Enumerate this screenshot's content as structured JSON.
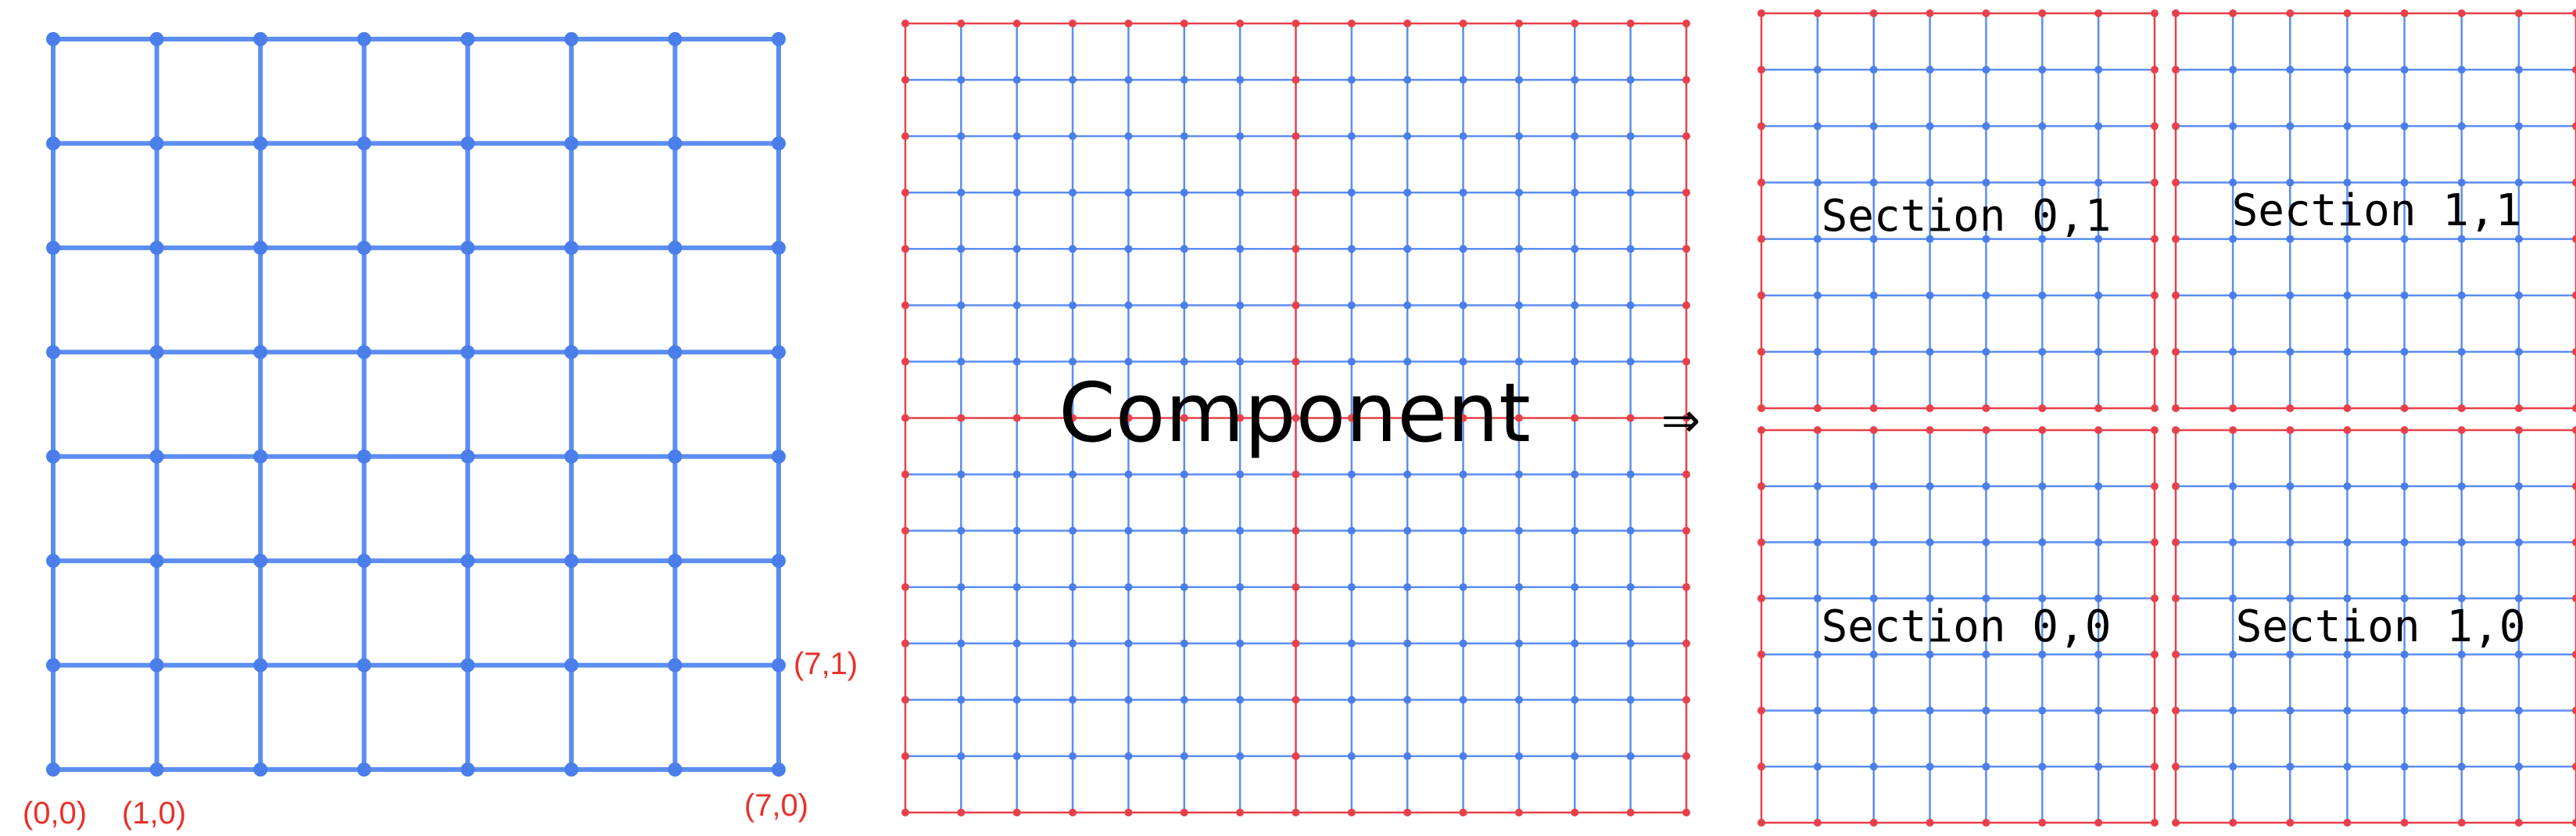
{
  "colors": {
    "grid_line": "#5b8ef0",
    "grid_node": "#4a7eea",
    "boundary": "#e8404a",
    "boundary_node": "#e8404a",
    "label_red": "#e8312a",
    "text": "#000000"
  },
  "panel_left": {
    "cols": 7,
    "rows": 7,
    "labels": {
      "origin": "(0,0)",
      "first_x": "(1,0)",
      "last_x": "(7,0)",
      "last_x_row1": "(7,1)"
    }
  },
  "panel_component": {
    "cols": 14,
    "rows": 14,
    "title": "Component"
  },
  "arrow": "⇒",
  "sections": [
    {
      "id": "0,1",
      "label": "Section 0,1"
    },
    {
      "id": "1,1",
      "label": "Section 1,1"
    },
    {
      "id": "0,0",
      "label": "Section 0,0"
    },
    {
      "id": "1,0",
      "label": "Section 1,0"
    }
  ],
  "section_grid": {
    "cols": 7,
    "rows": 7
  }
}
